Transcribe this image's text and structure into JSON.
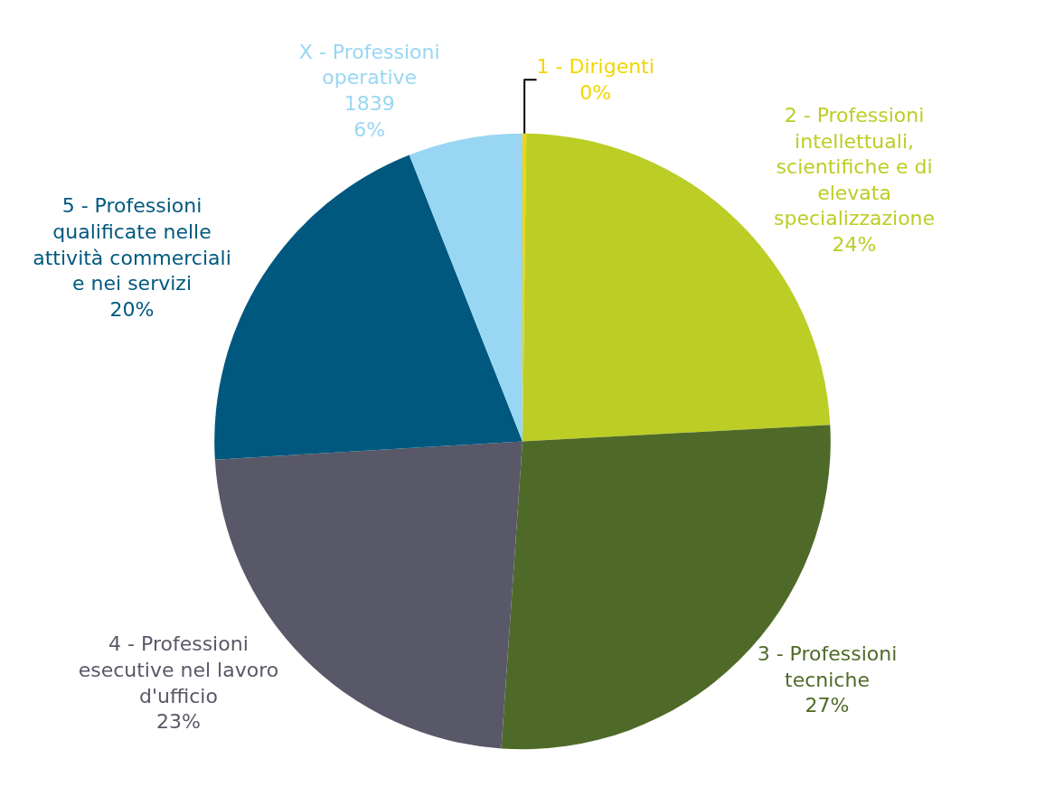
{
  "chart_data": {
    "type": "pie",
    "categories": [
      "1 - Dirigenti",
      "2 - Professioni intellettuali, scientifiche e di elevata specializzazione",
      "3 - Professioni tecniche",
      "4 - Professioni esecutive nel lavoro d'ufficio",
      "5 - Professioni qualificate nelle attività commerciali e nei servizi",
      "X - Professioni operative"
    ],
    "values": [
      0.2,
      24,
      27,
      23,
      20,
      6
    ],
    "value_labels": [
      "0%",
      "24%",
      "27%",
      "23%",
      "20%",
      "1839\n6%"
    ],
    "colors": [
      "#f2d500",
      "#bccd25",
      "#4f6a28",
      "#585868",
      "#00587f",
      "#98d6f3"
    ],
    "legend": false
  }
}
